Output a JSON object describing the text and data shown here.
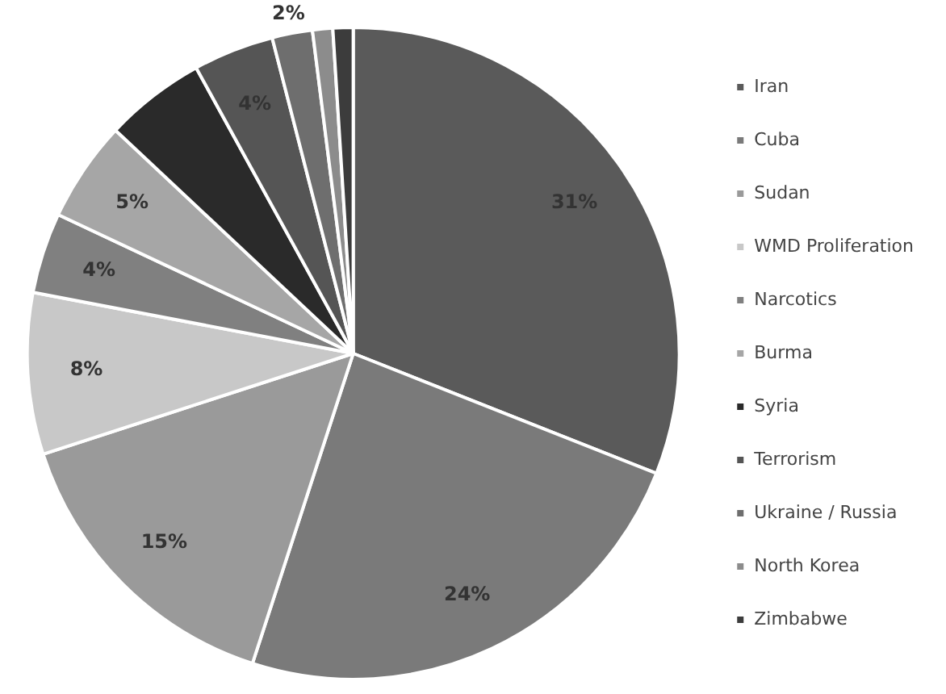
{
  "chart_data": {
    "type": "pie",
    "categories": [
      "Iran",
      "Cuba",
      "Sudan",
      "WMD Proliferation",
      "Narcotics",
      "Burma",
      "Syria",
      "Terrorism",
      "Ukraine / Russia",
      "North Korea",
      "Zimbabwe"
    ],
    "values": [
      31,
      24,
      15,
      8,
      4,
      5,
      5,
      4,
      2,
      1,
      1
    ],
    "value_labels": [
      "31%",
      "24%",
      "15%",
      "8%",
      "4%",
      "5%",
      null,
      "4%",
      "2%",
      null,
      null
    ],
    "colors": [
      "#5a5a5a",
      "#7a7a7a",
      "#9a9a9a",
      "#c8c8c8",
      "#808080",
      "#a6a6a6",
      "#2a2a2a",
      "#555555",
      "#6e6e6e",
      "#8c8c8c",
      "#3c3c3c"
    ],
    "legend": "right"
  }
}
